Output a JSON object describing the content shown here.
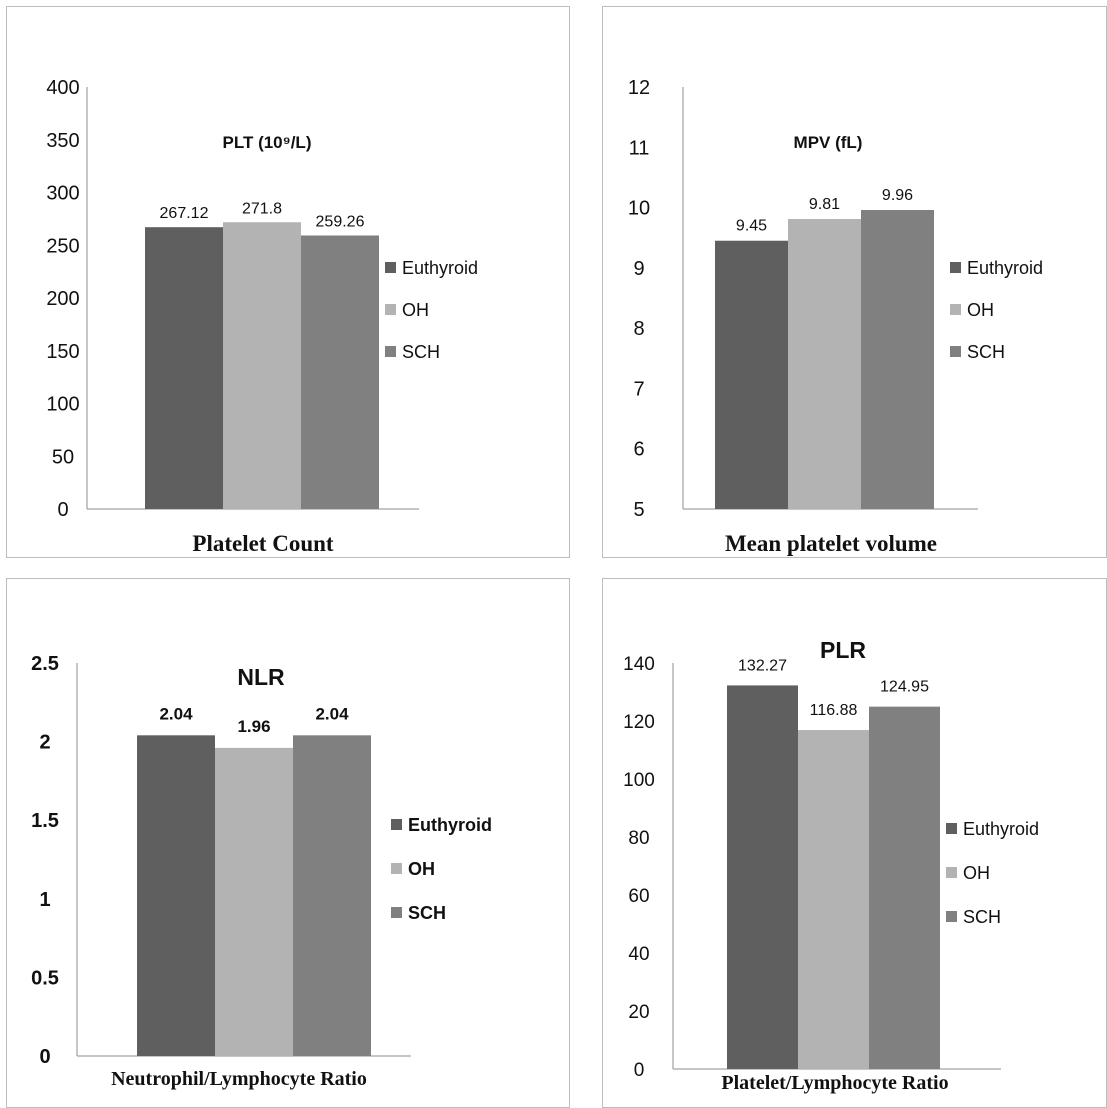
{
  "chart_data": [
    {
      "type": "bar",
      "title": "PLT (10⁹/L)",
      "xlabel": "Platelet Count",
      "ylabel": "",
      "ylim": [
        0,
        400
      ],
      "ytick_step": 50,
      "yticks": [
        "0",
        "50",
        "100",
        "150",
        "200",
        "250",
        "300",
        "350",
        "400"
      ],
      "series": [
        {
          "name": "Euthyroid",
          "value": 267.12,
          "label": "267.12",
          "color": "#5f5f5f"
        },
        {
          "name": "OH",
          "value": 271.8,
          "label": "271.8",
          "color": "#b3b3b3"
        },
        {
          "name": "SCH",
          "value": 259.26,
          "label": "259.26",
          "color": "#808080"
        }
      ],
      "legend": "right",
      "grid": false
    },
    {
      "type": "bar",
      "title": "MPV (fL)",
      "xlabel": "Mean platelet volume",
      "ylabel": "",
      "ylim": [
        5,
        12
      ],
      "ytick_step": 1,
      "yticks": [
        "5",
        "6",
        "7",
        "8",
        "9",
        "10",
        "11",
        "12"
      ],
      "series": [
        {
          "name": "Euthyroid",
          "value": 9.45,
          "label": "9.45",
          "color": "#5f5f5f"
        },
        {
          "name": "OH",
          "value": 9.81,
          "label": "9.81",
          "color": "#b3b3b3"
        },
        {
          "name": "SCH",
          "value": 9.96,
          "label": "9.96",
          "color": "#808080"
        }
      ],
      "legend": "right",
      "grid": false
    },
    {
      "type": "bar",
      "title": "NLR",
      "xlabel": "Neutrophil/Lymphocyte Ratio",
      "ylabel": "",
      "ylim": [
        0,
        2.5
      ],
      "ytick_step": 0.5,
      "yticks": [
        "0",
        "0.5",
        "1",
        "1.5",
        "2",
        "2.5"
      ],
      "series": [
        {
          "name": "Euthyroid",
          "value": 2.04,
          "label": "2.04",
          "color": "#5f5f5f"
        },
        {
          "name": "OH",
          "value": 1.96,
          "label": "1.96",
          "color": "#b3b3b3"
        },
        {
          "name": "SCH",
          "value": 2.04,
          "label": "2.04",
          "color": "#808080"
        }
      ],
      "legend": "right",
      "grid": false
    },
    {
      "type": "bar",
      "title": "PLR",
      "xlabel": "Platelet/Lymphocyte Ratio",
      "ylabel": "",
      "ylim": [
        0,
        140
      ],
      "ytick_step": 20,
      "yticks": [
        "0",
        "20",
        "40",
        "60",
        "80",
        "100",
        "120",
        "140"
      ],
      "series": [
        {
          "name": "Euthyroid",
          "value": 132.27,
          "label": "132.27",
          "color": "#5f5f5f"
        },
        {
          "name": "OH",
          "value": 116.88,
          "label": "116.88",
          "color": "#b3b3b3"
        },
        {
          "name": "SCH",
          "value": 124.95,
          "label": "124.95",
          "color": "#808080"
        }
      ],
      "legend": "right",
      "grid": false
    }
  ]
}
